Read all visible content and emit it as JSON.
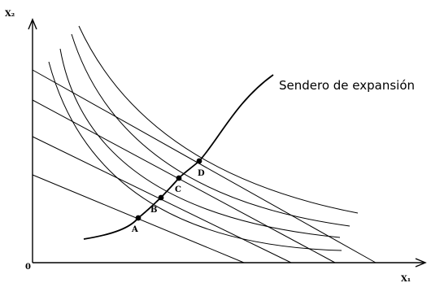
{
  "axes": {
    "y_label": "X₂",
    "x_label": "X₁",
    "origin_label": "0"
  },
  "expansion_path_label": "Sendero de expansión",
  "points": [
    {
      "label": "A"
    },
    {
      "label": "B"
    },
    {
      "label": "C"
    },
    {
      "label": "D"
    }
  ],
  "colors": {
    "ink": "#000000",
    "background": "#ffffff"
  }
}
